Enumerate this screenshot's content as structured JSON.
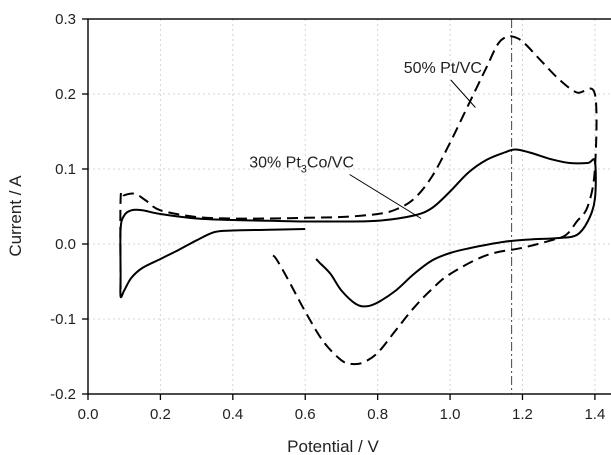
{
  "chart_data": {
    "type": "line",
    "title": "",
    "xlabel": "Potential / V",
    "ylabel": "Current / A",
    "xlim": [
      0.0,
      1.45
    ],
    "ylim": [
      -0.2,
      0.3
    ],
    "x_ticks": [
      "0.0",
      "0.2",
      "0.4",
      "0.6",
      "0.8",
      "1.0",
      "1.2",
      "1.4"
    ],
    "y_ticks": [
      "-0.2",
      "-0.1",
      "0.0",
      "0.1",
      "0.2",
      "0.3"
    ],
    "grid": true,
    "reference_line": {
      "x": 1.17,
      "style": "dash-dot"
    },
    "series": [
      {
        "name": "50% Pt/VC",
        "style": "dashed",
        "color": "#000000",
        "points": [
          [
            0.09,
            -0.06
          ],
          [
            0.09,
            0.06
          ],
          [
            0.1,
            0.065
          ],
          [
            0.13,
            0.067
          ],
          [
            0.16,
            0.058
          ],
          [
            0.2,
            0.045
          ],
          [
            0.3,
            0.036
          ],
          [
            0.4,
            0.034
          ],
          [
            0.5,
            0.034
          ],
          [
            0.6,
            0.035
          ],
          [
            0.7,
            0.036
          ],
          [
            0.8,
            0.04
          ],
          [
            0.85,
            0.046
          ],
          [
            0.9,
            0.06
          ],
          [
            0.95,
            0.09
          ],
          [
            1.0,
            0.135
          ],
          [
            1.05,
            0.185
          ],
          [
            1.1,
            0.235
          ],
          [
            1.13,
            0.265
          ],
          [
            1.15,
            0.275
          ],
          [
            1.17,
            0.277
          ],
          [
            1.2,
            0.27
          ],
          [
            1.25,
            0.245
          ],
          [
            1.3,
            0.22
          ],
          [
            1.35,
            0.202
          ],
          [
            1.4,
            0.2
          ],
          [
            1.4,
            0.1
          ],
          [
            1.38,
            0.05
          ],
          [
            1.35,
            0.03
          ],
          [
            1.32,
            0.012
          ],
          [
            1.28,
            0.005
          ],
          [
            1.2,
            -0.005
          ],
          [
            1.1,
            -0.015
          ],
          [
            1.0,
            -0.04
          ],
          [
            0.95,
            -0.06
          ],
          [
            0.9,
            -0.085
          ],
          [
            0.85,
            -0.115
          ],
          [
            0.8,
            -0.145
          ],
          [
            0.76,
            -0.158
          ],
          [
            0.73,
            -0.16
          ],
          [
            0.7,
            -0.155
          ],
          [
            0.65,
            -0.13
          ],
          [
            0.6,
            -0.09
          ],
          [
            0.55,
            -0.045
          ],
          [
            0.52,
            -0.02
          ],
          [
            0.51,
            -0.015
          ]
        ]
      },
      {
        "name": "30% Pt3Co/VC",
        "style": "solid",
        "color": "#000000",
        "points": [
          [
            0.6,
            0.02
          ],
          [
            0.5,
            0.019
          ],
          [
            0.4,
            0.018
          ],
          [
            0.35,
            0.016
          ],
          [
            0.3,
            0.005
          ],
          [
            0.25,
            -0.008
          ],
          [
            0.2,
            -0.02
          ],
          [
            0.15,
            -0.032
          ],
          [
            0.12,
            -0.045
          ],
          [
            0.1,
            -0.062
          ],
          [
            0.09,
            -0.07
          ],
          [
            0.09,
            -0.04
          ],
          [
            0.09,
            0.02
          ],
          [
            0.1,
            0.038
          ],
          [
            0.12,
            0.045
          ],
          [
            0.15,
            0.045
          ],
          [
            0.2,
            0.04
          ],
          [
            0.3,
            0.034
          ],
          [
            0.4,
            0.032
          ],
          [
            0.5,
            0.031
          ],
          [
            0.6,
            0.03
          ],
          [
            0.7,
            0.03
          ],
          [
            0.8,
            0.031
          ],
          [
            0.9,
            0.038
          ],
          [
            0.95,
            0.048
          ],
          [
            1.0,
            0.07
          ],
          [
            1.05,
            0.095
          ],
          [
            1.1,
            0.112
          ],
          [
            1.15,
            0.122
          ],
          [
            1.18,
            0.126
          ],
          [
            1.22,
            0.122
          ],
          [
            1.28,
            0.113
          ],
          [
            1.33,
            0.108
          ],
          [
            1.38,
            0.108
          ],
          [
            1.4,
            0.11
          ],
          [
            1.4,
            0.06
          ],
          [
            1.38,
            0.03
          ],
          [
            1.35,
            0.012
          ],
          [
            1.3,
            0.008
          ],
          [
            1.22,
            0.006
          ],
          [
            1.15,
            0.003
          ],
          [
            1.05,
            -0.006
          ],
          [
            1.0,
            -0.012
          ],
          [
            0.95,
            -0.022
          ],
          [
            0.9,
            -0.04
          ],
          [
            0.85,
            -0.062
          ],
          [
            0.8,
            -0.078
          ],
          [
            0.77,
            -0.083
          ],
          [
            0.74,
            -0.08
          ],
          [
            0.7,
            -0.062
          ],
          [
            0.67,
            -0.04
          ],
          [
            0.64,
            -0.025
          ],
          [
            0.63,
            -0.02
          ]
        ]
      }
    ],
    "annotations": [
      {
        "text": "50% Pt/VC",
        "label_at": [
          0.98,
          0.228
        ],
        "points_to": [
          1.07,
          0.182
        ]
      },
      {
        "text_parts": [
          "30% Pt",
          "3",
          "Co/VC"
        ],
        "label_at": [
          0.59,
          0.102
        ],
        "points_to": [
          0.92,
          0.034
        ]
      }
    ]
  }
}
